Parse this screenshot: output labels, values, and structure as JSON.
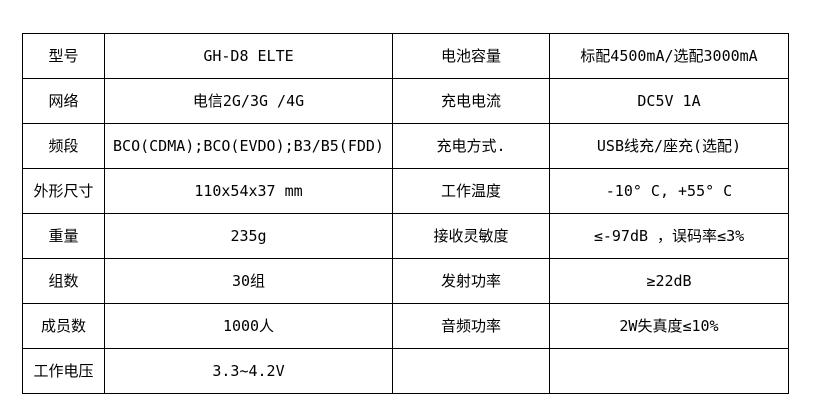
{
  "table": {
    "border_color": "#000000",
    "background_color": "#ffffff",
    "text_color": "#000000",
    "rows": [
      {
        "label_left": "型号",
        "value_left": "GH-D8 ELTE",
        "label_right": "电池容量",
        "value_right": "标配4500mA/选配3000mA"
      },
      {
        "label_left": "网络",
        "value_left": "电信2G/3G /4G",
        "label_right": "充电电流",
        "value_right": "DC5V 1A"
      },
      {
        "label_left": "频段",
        "value_left": "BCO(CDMA);BCO(EVDO);B3/B5(FDD)",
        "label_right": "充电方式.",
        "value_right": "USB线充/座充(选配)"
      },
      {
        "label_left": "外形尺寸",
        "value_left": "110x54x37 mm",
        "label_right": "工作温度",
        "value_right": "-10° C, +55° C"
      },
      {
        "label_left": "重量",
        "value_left": "235g",
        "label_right": "接收灵敏度",
        "value_right": "≤-97dB ，误码率≤3%"
      },
      {
        "label_left": "组数",
        "value_left": "30组",
        "label_right": "发射功率",
        "value_right": "≥22dB"
      },
      {
        "label_left": "成员数",
        "value_left": "1000人",
        "label_right": "音频功率",
        "value_right": "2W失真度≤10%"
      },
      {
        "label_left": "工作电压",
        "value_left": "3.3~4.2V",
        "label_right": "",
        "value_right": ""
      }
    ]
  }
}
